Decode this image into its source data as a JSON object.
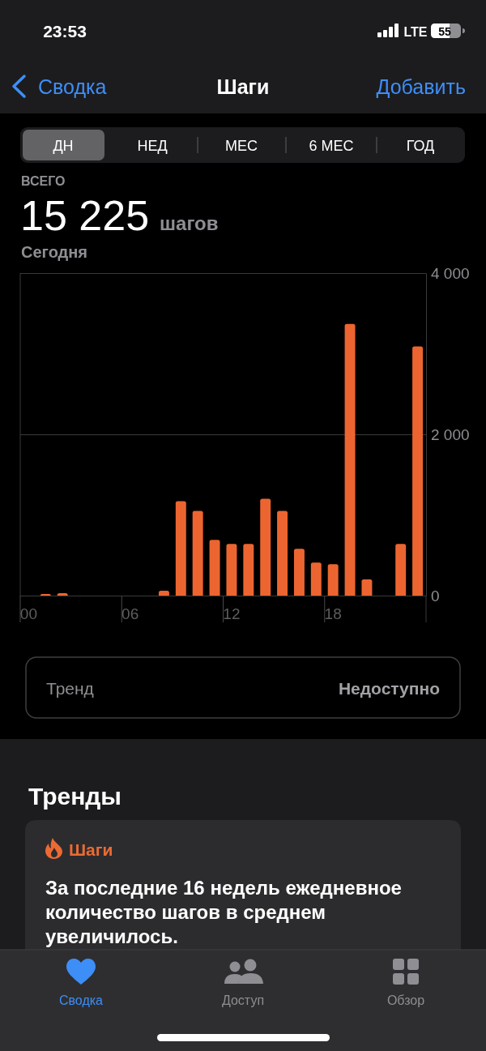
{
  "chart_data": {
    "type": "bar",
    "title": "Шаги",
    "categories": [
      "00",
      null,
      null,
      null,
      null,
      null,
      "06",
      null,
      null,
      null,
      null,
      null,
      "12",
      null,
      null,
      null,
      null,
      null,
      "18",
      null,
      null,
      null,
      null,
      null
    ],
    "values": [
      null,
      20,
      30,
      null,
      null,
      null,
      null,
      null,
      60,
      1170,
      1050,
      690,
      640,
      640,
      1200,
      1050,
      580,
      410,
      390,
      3370,
      200,
      null,
      640,
      3090
    ],
    "color": "#ec6530",
    "ylim": [
      0,
      4000
    ],
    "yticks": [
      0,
      {
        "value": 2000,
        "label": "2 000"
      },
      {
        "value": 4000,
        "label": "4 000"
      }
    ],
    "grid": "y",
    "annotations": [
      "23:53",
      "LTE",
      "55",
      "Сводка",
      "Добавить",
      "ДН",
      "НЕД",
      "МЕС",
      "6 МЕС",
      "ГОД",
      "ВСЕГО",
      "15 225",
      "шагов",
      "Сегодня",
      "Тренд",
      "Недоступно",
      "Тренды",
      "Шаги",
      "За последние 16 недель ежедневное количество шагов в среднем увеличилось.",
      "Сводка",
      "Доступ",
      "Обзор"
    ]
  }
}
